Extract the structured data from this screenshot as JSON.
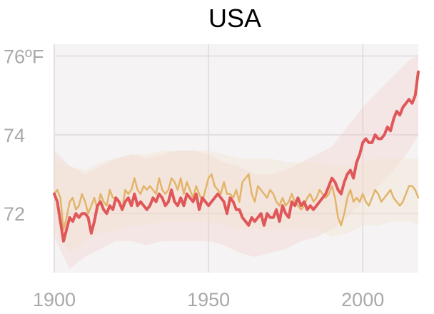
{
  "chart_data": {
    "type": "line",
    "title": "USA",
    "xlabel": "",
    "ylabel": "",
    "xlim": [
      1900,
      2018
    ],
    "ylim": [
      70.5,
      76.3
    ],
    "x_ticks": [
      {
        "value": 1900,
        "label": "1900"
      },
      {
        "value": 1950,
        "label": "1950"
      },
      {
        "value": 2000,
        "label": "2000"
      }
    ],
    "y_ticks": [
      {
        "value": 76,
        "label": "76ºF"
      },
      {
        "value": 74,
        "label": "74"
      },
      {
        "value": 72,
        "label": "72"
      }
    ],
    "grid": true,
    "legend": "none",
    "colors": {
      "plot_background": "#f5f3f3",
      "grid": "#e2e0e0",
      "band_red": "#f1c6c2",
      "band_tan": "#f3e3cc",
      "series_red": "#e0575a",
      "series_tan": "#e2b46a",
      "tick_text": "#a9a9a9",
      "title_text": "#000000"
    },
    "series": [
      {
        "color": "#e0575a",
        "x": [
          1900,
          1901,
          1902,
          1903,
          1904,
          1905,
          1906,
          1907,
          1908,
          1909,
          1910,
          1911,
          1912,
          1913,
          1914,
          1915,
          1916,
          1917,
          1918,
          1919,
          1920,
          1921,
          1922,
          1923,
          1924,
          1925,
          1926,
          1927,
          1928,
          1929,
          1930,
          1931,
          1932,
          1933,
          1934,
          1935,
          1936,
          1937,
          1938,
          1939,
          1940,
          1941,
          1942,
          1943,
          1944,
          1945,
          1946,
          1947,
          1948,
          1949,
          1950,
          1951,
          1952,
          1953,
          1954,
          1955,
          1956,
          1957,
          1958,
          1959,
          1960,
          1961,
          1962,
          1963,
          1964,
          1965,
          1966,
          1967,
          1968,
          1969,
          1970,
          1971,
          1972,
          1973,
          1974,
          1975,
          1976,
          1977,
          1978,
          1979,
          1980,
          1981,
          1982,
          1983,
          1984,
          1985,
          1986,
          1987,
          1988,
          1989,
          1990,
          1991,
          1992,
          1993,
          1994,
          1995,
          1996,
          1997,
          1998,
          1999,
          2000,
          2001,
          2002,
          2003,
          2004,
          2005,
          2006,
          2007,
          2008,
          2009,
          2010,
          2011,
          2012,
          2013,
          2014,
          2015,
          2016,
          2017,
          2018
        ],
        "values": [
          72.5,
          72.3,
          71.8,
          71.3,
          71.6,
          71.9,
          71.8,
          72.0,
          71.9,
          72.0,
          72.0,
          71.9,
          71.5,
          71.8,
          72.2,
          72.3,
          72.1,
          72.0,
          72.2,
          72.1,
          72.4,
          72.3,
          72.1,
          72.3,
          72.4,
          72.2,
          72.5,
          72.2,
          72.3,
          72.2,
          72.1,
          72.2,
          72.4,
          72.3,
          72.5,
          72.4,
          72.2,
          72.3,
          72.6,
          72.3,
          72.2,
          72.4,
          72.2,
          72.5,
          72.4,
          72.3,
          72.5,
          72.1,
          72.4,
          72.3,
          72.2,
          72.3,
          72.4,
          72.5,
          72.4,
          72.3,
          72.0,
          72.4,
          72.3,
          72.1,
          72.1,
          71.9,
          71.8,
          71.7,
          71.9,
          71.8,
          71.9,
          72.0,
          71.7,
          72.0,
          71.9,
          71.9,
          72.1,
          71.8,
          72.2,
          72.0,
          71.9,
          72.3,
          72.2,
          72.4,
          72.2,
          72.3,
          72.1,
          72.2,
          72.1,
          72.2,
          72.3,
          72.4,
          72.5,
          72.7,
          72.9,
          72.8,
          72.6,
          72.5,
          72.8,
          73.0,
          73.1,
          72.9,
          73.3,
          73.5,
          73.8,
          73.9,
          73.8,
          73.8,
          74.0,
          73.9,
          73.9,
          74.0,
          74.2,
          74.1,
          74.4,
          74.6,
          74.5,
          74.7,
          74.8,
          74.9,
          74.8,
          75.0,
          75.6
        ]
      },
      {
        "color": "#e2b46a",
        "x": [
          1900,
          1901,
          1902,
          1903,
          1904,
          1905,
          1906,
          1907,
          1908,
          1909,
          1910,
          1911,
          1912,
          1913,
          1914,
          1915,
          1916,
          1917,
          1918,
          1919,
          1920,
          1921,
          1922,
          1923,
          1924,
          1925,
          1926,
          1927,
          1928,
          1929,
          1930,
          1931,
          1932,
          1933,
          1934,
          1935,
          1936,
          1937,
          1938,
          1939,
          1940,
          1941,
          1942,
          1943,
          1944,
          1945,
          1946,
          1947,
          1948,
          1949,
          1950,
          1951,
          1952,
          1953,
          1954,
          1955,
          1956,
          1957,
          1958,
          1959,
          1960,
          1961,
          1962,
          1963,
          1964,
          1965,
          1966,
          1967,
          1968,
          1969,
          1970,
          1971,
          1972,
          1973,
          1974,
          1975,
          1976,
          1977,
          1978,
          1979,
          1980,
          1981,
          1982,
          1983,
          1984,
          1985,
          1986,
          1987,
          1988,
          1989,
          1990,
          1991,
          1992,
          1993,
          1994,
          1995,
          1996,
          1997,
          1998,
          1999,
          2000,
          2001,
          2002,
          2003,
          2004,
          2005,
          2006,
          2007,
          2008,
          2009,
          2010,
          2011,
          2012,
          2013,
          2014,
          2015,
          2016,
          2017,
          2018
        ],
        "values": [
          72.5,
          72.6,
          72.4,
          71.6,
          71.9,
          72.3,
          72.4,
          72.1,
          72.2,
          72.5,
          72.3,
          72.0,
          72.2,
          72.4,
          72.1,
          72.5,
          72.3,
          72.2,
          72.6,
          72.4,
          72.4,
          72.3,
          72.1,
          72.6,
          72.5,
          72.6,
          72.9,
          72.6,
          72.5,
          72.7,
          72.6,
          72.7,
          72.6,
          72.5,
          72.9,
          72.6,
          72.5,
          72.6,
          72.9,
          72.8,
          72.6,
          72.9,
          72.5,
          72.8,
          72.6,
          72.4,
          72.7,
          72.5,
          72.3,
          72.6,
          72.9,
          73.0,
          72.7,
          72.6,
          72.5,
          72.8,
          72.5,
          72.5,
          72.4,
          72.6,
          72.3,
          72.8,
          72.9,
          73.0,
          72.5,
          72.3,
          72.7,
          72.6,
          72.5,
          72.4,
          72.6,
          72.5,
          72.3,
          72.2,
          72.4,
          72.2,
          72.3,
          72.5,
          72.3,
          72.2,
          72.1,
          72.2,
          72.4,
          72.5,
          72.3,
          72.4,
          72.6,
          72.5,
          72.4,
          72.5,
          72.7,
          72.4,
          71.9,
          71.7,
          72.0,
          72.4,
          72.6,
          72.3,
          72.4,
          72.3,
          72.5,
          72.3,
          72.2,
          72.4,
          72.6,
          72.5,
          72.3,
          72.4,
          72.5,
          72.6,
          72.4,
          72.3,
          72.2,
          72.3,
          72.5,
          72.7,
          72.7,
          72.6,
          72.4
        ]
      }
    ],
    "bands": [
      {
        "color": "#f1c6c2",
        "opacity": 0.28,
        "x": [
          1900,
          1905,
          1910,
          1915,
          1920,
          1925,
          1930,
          1935,
          1940,
          1945,
          1950,
          1955,
          1960,
          1965,
          1970,
          1975,
          1980,
          1985,
          1990,
          1995,
          2000,
          2005,
          2010,
          2015,
          2018
        ],
        "low": [
          71.4,
          70.6,
          70.9,
          71.1,
          71.3,
          71.3,
          71.2,
          71.3,
          71.3,
          71.3,
          71.3,
          71.2,
          71.0,
          70.9,
          71.0,
          71.1,
          71.3,
          71.4,
          71.6,
          71.9,
          72.3,
          72.7,
          73.1,
          73.6,
          74.0
        ],
        "high": [
          73.6,
          73.2,
          73.0,
          73.2,
          73.4,
          73.5,
          73.4,
          73.5,
          73.6,
          73.6,
          73.5,
          73.3,
          73.2,
          73.0,
          73.0,
          73.1,
          73.3,
          73.5,
          73.7,
          74.2,
          74.7,
          75.1,
          75.5,
          75.9,
          76.0
        ]
      },
      {
        "color": "#f3e3cc",
        "opacity": 0.35,
        "x": [
          1900,
          1905,
          1910,
          1915,
          1920,
          1925,
          1930,
          1935,
          1940,
          1945,
          1950,
          1955,
          1960,
          1965,
          1970,
          1975,
          1980,
          1985,
          1990,
          1995,
          2000,
          2005,
          2010,
          2015,
          2018
        ],
        "low": [
          71.6,
          71.0,
          71.3,
          71.5,
          71.6,
          71.7,
          71.7,
          71.8,
          71.8,
          71.8,
          71.8,
          71.7,
          71.6,
          71.6,
          71.6,
          71.6,
          71.6,
          71.6,
          71.4,
          71.5,
          71.7,
          71.7,
          71.8,
          71.8,
          71.7
        ],
        "high": [
          73.4,
          73.2,
          73.1,
          73.3,
          73.4,
          73.5,
          73.5,
          73.6,
          73.6,
          73.6,
          73.6,
          73.5,
          73.4,
          73.4,
          73.4,
          73.3,
          73.3,
          73.3,
          73.2,
          73.2,
          73.3,
          73.4,
          73.4,
          73.4,
          73.4
        ]
      }
    ]
  }
}
